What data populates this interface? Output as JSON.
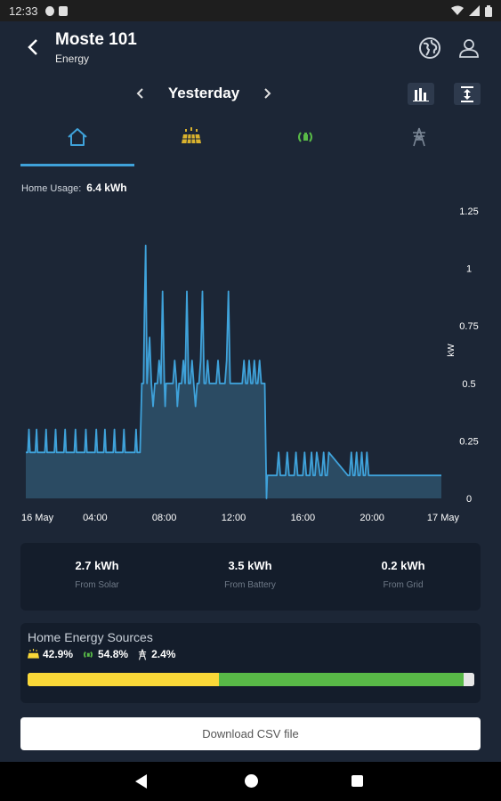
{
  "status_bar": {
    "time": "12:33",
    "icons": [
      "notification-icon",
      "clipboard-icon",
      "wifi-icon",
      "signal-icon",
      "battery-icon"
    ]
  },
  "header": {
    "title": "Moste 101",
    "subtitle": "Energy",
    "icons": {
      "back": "back-arrow-icon",
      "globe": "globe-icon",
      "user": "user-icon"
    }
  },
  "date_nav": {
    "label": "Yesterday"
  },
  "tabs": [
    {
      "name": "home",
      "icon": "home-icon",
      "active": true
    },
    {
      "name": "solar",
      "icon": "solar-panel-icon",
      "active": false
    },
    {
      "name": "battery",
      "icon": "battery-cycle-icon",
      "active": false
    },
    {
      "name": "grid",
      "icon": "grid-tower-icon",
      "active": false
    }
  ],
  "usage": {
    "label": "Home Usage:",
    "value": "6.4 kWh"
  },
  "colors": {
    "accent": "#3fa2da",
    "solar": "#fad838",
    "battery": "#58b947",
    "grid": "#e6e6e6",
    "background": "#1c2636",
    "card": "#141d2b"
  },
  "chart_data": {
    "type": "area",
    "ylabel": "kW",
    "ylim": [
      0,
      1.25
    ],
    "yticks": [
      "0",
      "0.25",
      "0.5",
      "0.75",
      "1",
      "1.25"
    ],
    "ytick_values": [
      0,
      0.25,
      0.5,
      0.75,
      1,
      1.25
    ],
    "xtick_labels": [
      "16 May",
      "04:00",
      "08:00",
      "12:00",
      "16:00",
      "20:00",
      "17 May"
    ],
    "xtick_hours": [
      0,
      4,
      8,
      12,
      16,
      20,
      24
    ],
    "xlim_hours": [
      0,
      24
    ],
    "grid": false,
    "series": [
      {
        "values_hours": [
          0,
          0.12,
          0.18,
          0.24,
          0.55,
          0.62,
          0.68,
          1.1,
          1.17,
          1.23,
          1.65,
          1.72,
          1.78,
          2.2,
          2.27,
          2.33,
          2.8,
          2.87,
          2.93,
          3.4,
          3.47,
          3.53,
          4.0,
          4.07,
          4.13,
          4.5,
          4.57,
          4.63,
          5.05,
          5.12,
          5.18,
          5.6,
          5.67,
          5.73,
          6.3,
          6.37,
          6.43,
          6.6,
          6.7,
          6.8,
          6.85,
          6.92,
          7.0,
          7.15,
          7.25,
          7.35,
          7.45,
          7.6,
          7.7,
          7.8,
          7.9,
          8.0,
          8.05,
          8.1,
          8.2,
          8.5,
          8.6,
          8.7,
          8.75,
          8.85,
          9.0,
          9.1,
          9.2,
          9.3,
          9.4,
          9.5,
          9.6,
          9.7,
          9.8,
          9.9,
          10.0,
          10.1,
          10.2,
          10.3,
          10.4,
          10.5,
          10.6,
          11.0,
          11.1,
          11.2,
          11.5,
          11.6,
          11.7,
          11.8,
          11.9,
          12.0,
          12.4,
          12.5,
          12.6,
          12.7,
          12.8,
          12.9,
          13.0,
          13.1,
          13.2,
          13.3,
          13.4,
          13.5,
          13.6,
          13.7,
          13.8,
          13.9,
          13.95,
          14.0,
          14.1,
          14.2,
          14.5,
          14.6,
          14.7,
          15.0,
          15.1,
          15.2,
          15.5,
          15.6,
          15.7,
          16.0,
          16.1,
          16.2,
          16.4,
          16.5,
          16.6,
          16.7,
          16.8,
          17.0,
          17.1,
          17.2,
          17.3,
          17.4,
          17.5,
          18.6,
          18.7,
          18.8,
          18.9,
          19.0,
          19.1,
          19.2,
          19.3,
          19.4,
          19.5,
          19.6,
          19.7,
          19.8,
          20.0,
          24
        ],
        "values_kw": [
          0.2,
          0.2,
          0.3,
          0.2,
          0.2,
          0.3,
          0.2,
          0.2,
          0.3,
          0.2,
          0.2,
          0.3,
          0.2,
          0.2,
          0.3,
          0.2,
          0.2,
          0.3,
          0.2,
          0.2,
          0.3,
          0.2,
          0.2,
          0.3,
          0.2,
          0.2,
          0.3,
          0.2,
          0.2,
          0.3,
          0.2,
          0.2,
          0.3,
          0.2,
          0.2,
          0.3,
          0.2,
          0.2,
          0.5,
          0.5,
          0.8,
          1.1,
          0.5,
          0.7,
          0.5,
          0.4,
          0.5,
          0.5,
          0.6,
          0.5,
          0.9,
          0.5,
          0.4,
          0.5,
          0.5,
          0.5,
          0.6,
          0.5,
          0.4,
          0.5,
          0.5,
          0.6,
          0.5,
          0.9,
          0.5,
          0.5,
          0.6,
          0.5,
          0.4,
          0.5,
          0.5,
          0.6,
          0.9,
          0.5,
          0.5,
          0.6,
          0.5,
          0.5,
          0.6,
          0.5,
          0.5,
          0.6,
          0.9,
          0.5,
          0.5,
          0.5,
          0.5,
          0.5,
          0.6,
          0.5,
          0.5,
          0.6,
          0.5,
          0.5,
          0.6,
          0.5,
          0.5,
          0.6,
          0.5,
          0.5,
          0.5,
          0.0,
          0.1,
          0.1,
          0.1,
          0.1,
          0.1,
          0.2,
          0.1,
          0.1,
          0.2,
          0.1,
          0.1,
          0.2,
          0.1,
          0.1,
          0.2,
          0.1,
          0.1,
          0.2,
          0.1,
          0.1,
          0.2,
          0.1,
          0.1,
          0.2,
          0.1,
          0.1,
          0.2,
          0.1,
          0.1,
          0.2,
          0.1,
          0.1,
          0.2,
          0.1,
          0.1,
          0.2,
          0.1,
          0.1,
          0.2,
          0.1,
          0.1,
          0.1
        ]
      }
    ]
  },
  "summary": [
    {
      "value": "2.7 kWh",
      "label": "From Solar"
    },
    {
      "value": "3.5 kWh",
      "label": "From Battery"
    },
    {
      "value": "0.2 kWh",
      "label": "From Grid"
    }
  ],
  "sources": {
    "title": "Home Energy Sources",
    "solar_pct": "42.9%",
    "battery_pct": "54.8%",
    "grid_pct": "2.4%",
    "solar_fraction": 0.429,
    "battery_fraction": 0.548,
    "grid_fraction": 0.024
  },
  "download": {
    "label": "Download CSV file"
  }
}
